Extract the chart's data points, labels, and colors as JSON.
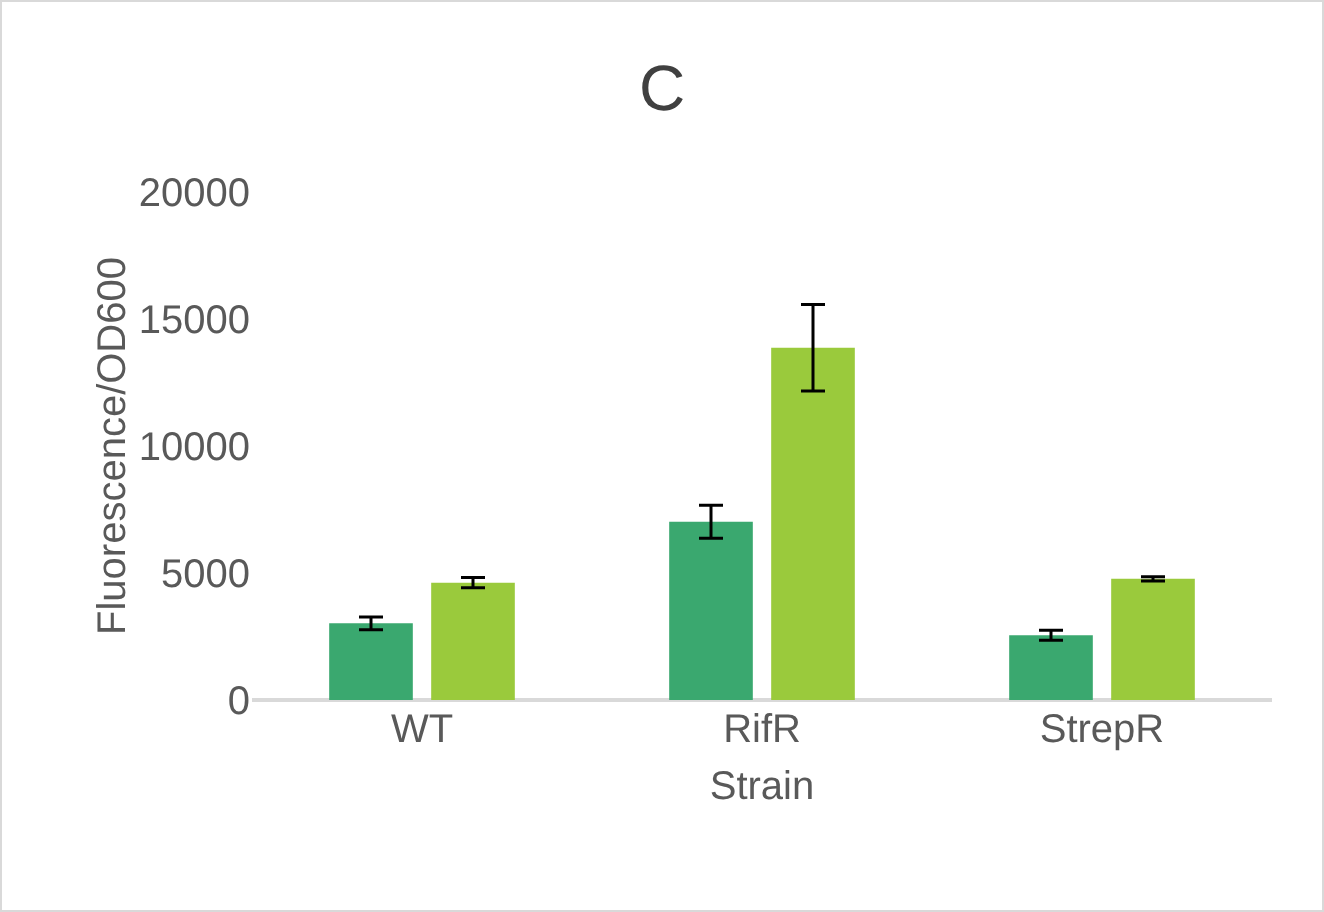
{
  "chart_data": {
    "type": "bar",
    "title": "C",
    "xlabel": "Strain",
    "ylabel": "Fluorescence/OD600",
    "categories": [
      "WT",
      "RifR",
      "StrepR"
    ],
    "series": [
      {
        "color": "#3aa86f",
        "values": [
          3020,
          7020,
          2550
        ],
        "errors": [
          250,
          650,
          200
        ]
      },
      {
        "color": "#9aca3c",
        "values": [
          4620,
          13870,
          4770
        ],
        "errors": [
          200,
          1700,
          80
        ]
      }
    ],
    "ylim": [
      0,
      20000
    ],
    "yticks": [
      0,
      5000,
      10000,
      15000,
      20000
    ],
    "grid": false
  }
}
